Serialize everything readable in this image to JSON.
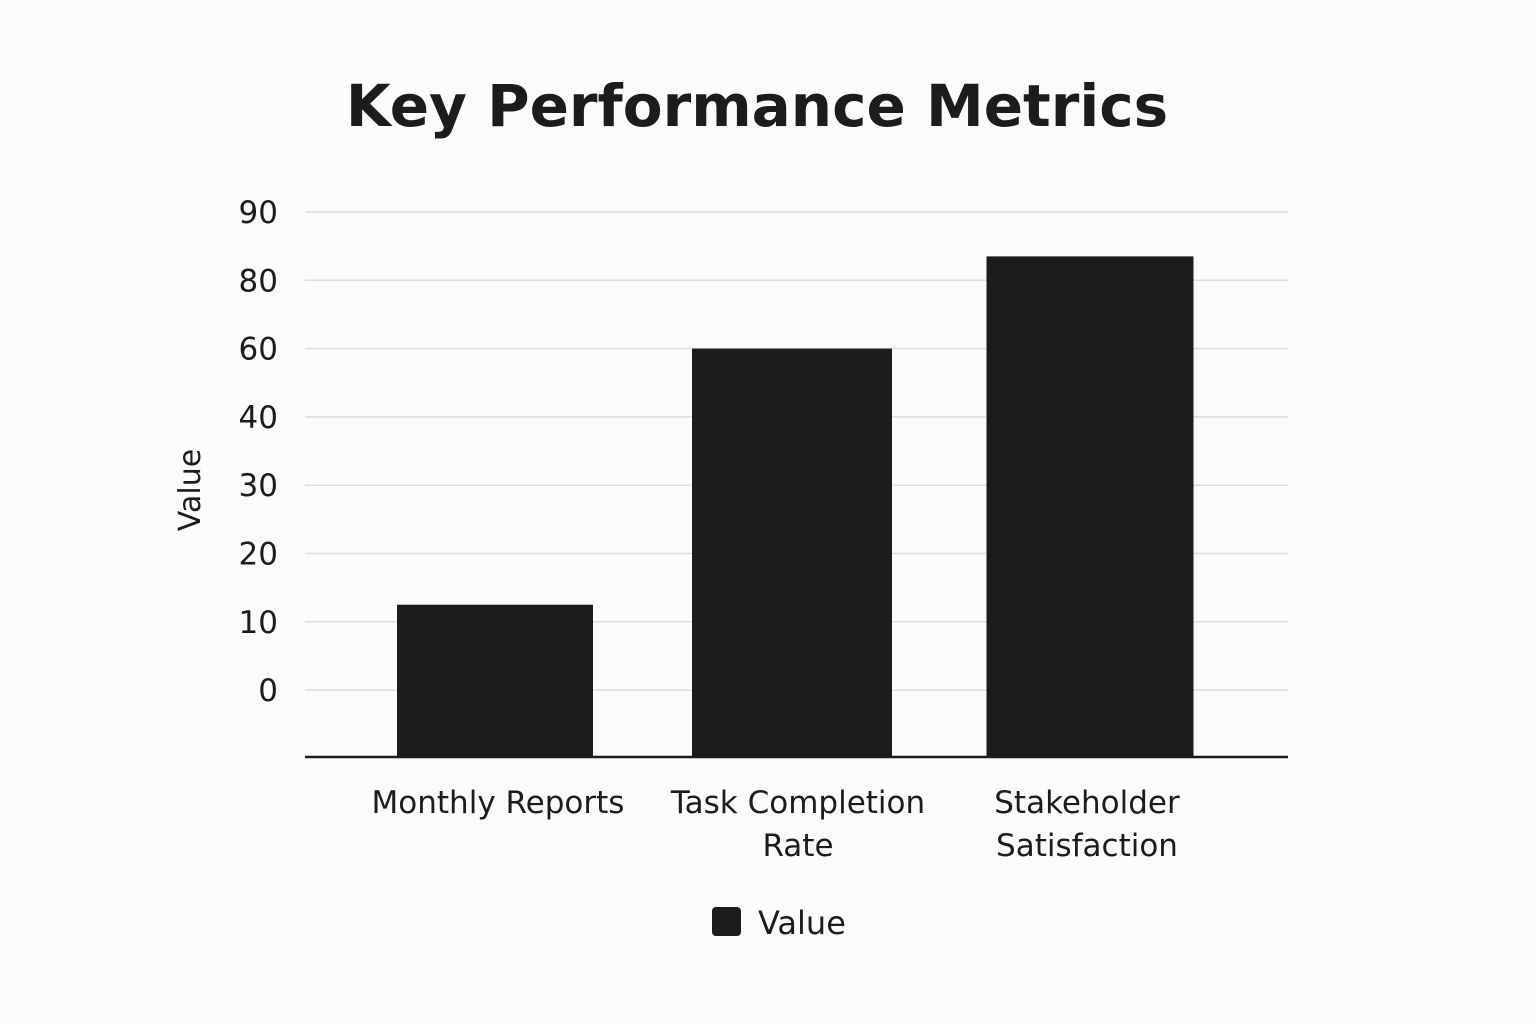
{
  "colors": {
    "background": "#fbfbf9",
    "bar": "#1c1c1c",
    "gridline": "#dddddd",
    "text": "#1c1c1c"
  },
  "chart_data": {
    "type": "bar",
    "title": "Key Performance Metrics",
    "xlabel": "",
    "ylabel": "Value",
    "categories": [
      [
        "Monthly Reports"
      ],
      [
        "Task Completion",
        "Rate"
      ],
      [
        "Stakeholder",
        "Satisfaction"
      ]
    ],
    "series": [
      {
        "name": "Value",
        "values": [
          12.5,
          60,
          83.5
        ]
      }
    ],
    "yticks": [
      "90",
      "80",
      "60",
      "40",
      "30",
      "20",
      "10",
      "0"
    ],
    "grid": true,
    "legend": "bottom-center"
  }
}
